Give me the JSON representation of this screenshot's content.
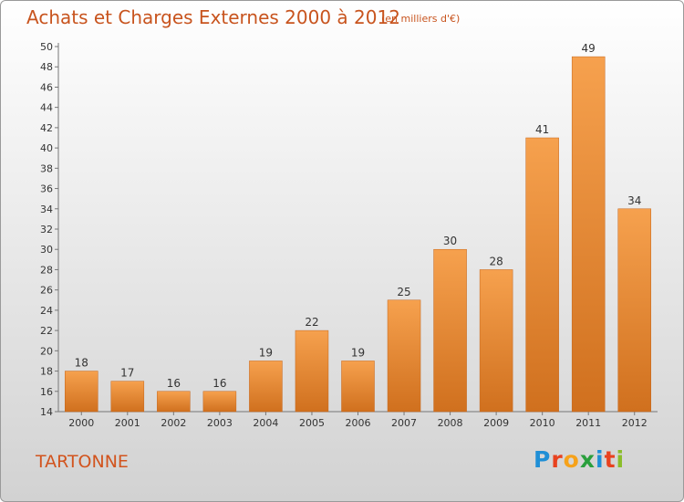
{
  "header": {
    "title": "Achats et Charges Externes 2000 à 2012",
    "subtitle": "(en milliers d'€)"
  },
  "footer": {
    "commune": "TARTONNE",
    "logo_text": "Proxiti",
    "logo_colors": [
      "#1f8fd6",
      "#e8421f",
      "#f6a21a",
      "#2a9f3c",
      "#1f8fd6",
      "#e8421f",
      "#8bbd2a"
    ]
  },
  "colors": {
    "bar_top": "#f6a14e",
    "bar_bottom": "#d0701e",
    "axis": "#777777",
    "text": "#333333"
  },
  "chart_data": {
    "type": "bar",
    "title": "Achats et Charges Externes 2000 à 2012",
    "subtitle": "(en milliers d'€)",
    "categories": [
      "2000",
      "2001",
      "2002",
      "2003",
      "2004",
      "2005",
      "2006",
      "2007",
      "2008",
      "2009",
      "2010",
      "2011",
      "2012"
    ],
    "values": [
      18,
      17,
      16,
      16,
      19,
      22,
      19,
      25,
      30,
      28,
      41,
      49,
      34
    ],
    "ylim": [
      14,
      50
    ],
    "yticks": [
      14,
      16,
      18,
      20,
      22,
      24,
      26,
      28,
      30,
      32,
      34,
      36,
      38,
      40,
      42,
      44,
      46,
      48,
      50
    ],
    "grid": false,
    "data_labels": true
  }
}
